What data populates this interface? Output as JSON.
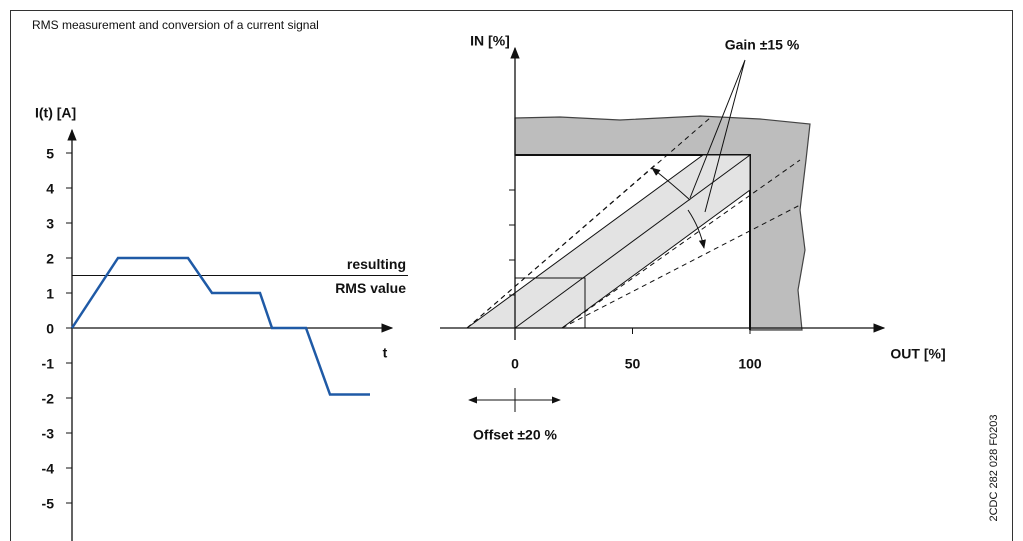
{
  "title": "RMS measurement and conversion of a current signal",
  "current_chart": {
    "y_label": "I(t) [A]",
    "x_label": "t",
    "yticks": [
      5,
      4,
      3,
      2,
      1,
      0,
      -1,
      -2,
      -3,
      -4,
      -5
    ],
    "t": [
      0,
      4.6,
      11.6,
      14,
      18.8,
      20,
      23.4,
      25.8,
      29.8
    ],
    "i": [
      0,
      2,
      2,
      1,
      1,
      0,
      0,
      -1.9,
      -1.9
    ],
    "line_color": "#1f5aa6",
    "rms_value": 1.5,
    "rms_label": [
      "resulting",
      "RMS value"
    ]
  },
  "conversion_diagram": {
    "in_label": "IN [%]",
    "out_label": "OUT [%]",
    "out_ticks": [
      0,
      50,
      100
    ],
    "gain_label": "Gain ±15 %",
    "offset_label": "Offset ±20 %"
  },
  "figure_code": "2CDC 282 028 F0203"
}
